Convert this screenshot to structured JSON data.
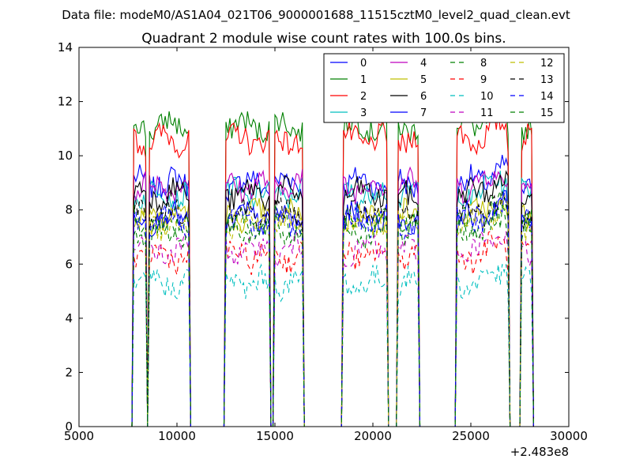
{
  "header": {
    "supertitle": "Data file: modeM0/AS1A04_021T06_9000001688_11515cztM0_level2_quad_clean.evt"
  },
  "chart_data": {
    "type": "line",
    "title": "Quadrant 2 module wise count rates with 100.0s bins.",
    "xlabel": "",
    "ylabel": "",
    "x_offset_label": "+2.483e8",
    "xlim": [
      5000,
      30000
    ],
    "ylim": [
      0,
      14
    ],
    "xticks": [
      5000,
      10000,
      15000,
      20000,
      25000,
      30000
    ],
    "yticks": [
      0,
      2,
      4,
      6,
      8,
      10,
      12,
      14
    ],
    "grid": false,
    "legend": {
      "placement": "top-right",
      "columns": 4
    },
    "segments": [
      [
        7800,
        8400
      ],
      [
        8600,
        10600
      ],
      [
        12500,
        14700
      ],
      [
        15000,
        16400
      ],
      [
        18500,
        20700
      ],
      [
        21300,
        22300
      ],
      [
        24300,
        26900
      ],
      [
        27600,
        28100
      ]
    ],
    "zero_x": [
      5000,
      30000
    ],
    "series": [
      {
        "name": "0",
        "color": "#0000ff",
        "dash": "solid",
        "level": 9.0
      },
      {
        "name": "1",
        "color": "#008000",
        "dash": "solid",
        "level": 11.1
      },
      {
        "name": "2",
        "color": "#ff0000",
        "dash": "solid",
        "level": 10.6
      },
      {
        "name": "3",
        "color": "#00bfbf",
        "dash": "solid",
        "level": 8.6
      },
      {
        "name": "4",
        "color": "#bf00bf",
        "dash": "solid",
        "level": 8.9
      },
      {
        "name": "5",
        "color": "#bfbf00",
        "dash": "solid",
        "level": 7.8
      },
      {
        "name": "6",
        "color": "#000000",
        "dash": "solid",
        "level": 8.6
      },
      {
        "name": "7",
        "color": "#0000ff",
        "dash": "solid",
        "level": 7.7
      },
      {
        "name": "8",
        "color": "#008000",
        "dash": "dashed",
        "level": 7.6
      },
      {
        "name": "9",
        "color": "#ff0000",
        "dash": "dashed",
        "level": 6.3
      },
      {
        "name": "10",
        "color": "#00bfbf",
        "dash": "dashed",
        "level": 5.3
      },
      {
        "name": "11",
        "color": "#bf00bf",
        "dash": "dashed",
        "level": 6.5
      },
      {
        "name": "12",
        "color": "#bfbf00",
        "dash": "dashed",
        "level": 7.5
      },
      {
        "name": "13",
        "color": "#000000",
        "dash": "dashed",
        "level": 7.9
      },
      {
        "name": "14",
        "color": "#0000ff",
        "dash": "dashed",
        "level": 7.6
      },
      {
        "name": "15",
        "color": "#008000",
        "dash": "dashed",
        "level": 7.2
      }
    ]
  }
}
